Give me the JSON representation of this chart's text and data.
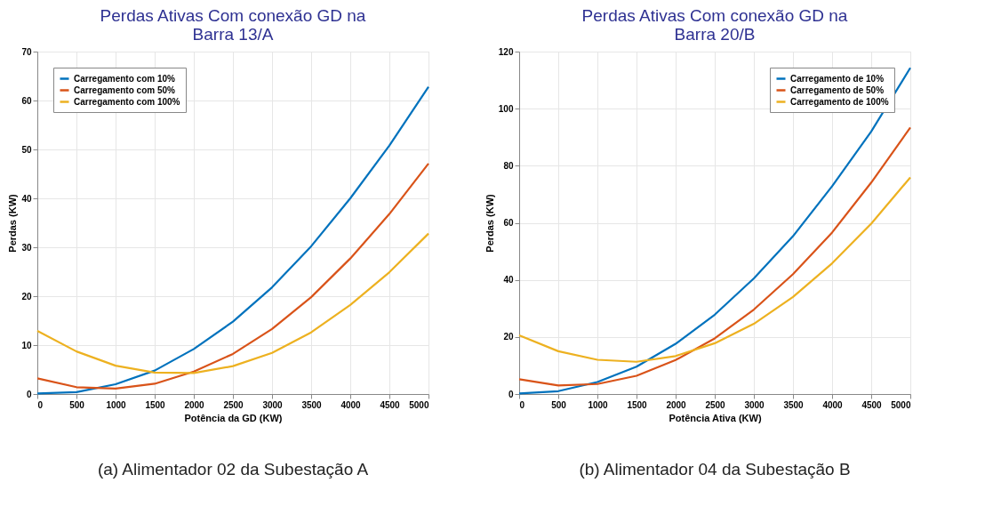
{
  "chart_data": [
    {
      "type": "line",
      "title": "Perdas Ativas Com conexão GD na Barra 13/A",
      "xlabel": "Potência da GD (KW)",
      "ylabel": "Perdas (KW)",
      "x": [
        0,
        500,
        1000,
        1500,
        2000,
        2500,
        3000,
        3500,
        4000,
        4500,
        5000
      ],
      "series": [
        {
          "name": "Carregamento com 10%",
          "color": "#0072bd",
          "values": [
            0.1,
            0.4,
            2,
            4.8,
            9.2,
            14.8,
            21.8,
            30.2,
            40,
            50.8,
            62.8
          ]
        },
        {
          "name": "Carregamento com 50%",
          "color": "#d95319",
          "values": [
            3.2,
            1.4,
            1.1,
            2.1,
            4.6,
            8.2,
            13.3,
            19.8,
            27.7,
            36.8,
            47.1
          ]
        },
        {
          "name": "Carregamento com 100%",
          "color": "#edb120",
          "values": [
            12.9,
            8.7,
            5.8,
            4.4,
            4.3,
            5.7,
            8.4,
            12.6,
            18.2,
            24.9,
            32.8
          ]
        }
      ],
      "xlim": [
        0,
        5000
      ],
      "xticks": [
        0,
        500,
        1000,
        1500,
        2000,
        2500,
        3000,
        3500,
        4000,
        4500,
        5000
      ],
      "ylim": [
        0,
        70
      ],
      "yticks": [
        0,
        10,
        20,
        30,
        40,
        50,
        60,
        70
      ],
      "grid": true,
      "legend": "top left",
      "marker": "none",
      "line_style": "solid",
      "annotations": [
        "(a) Alimentador 02 da Subestação A"
      ]
    },
    {
      "type": "line",
      "title": "Perdas Ativas Com conexão GD na Barra 20/B",
      "xlabel": "Potência Ativa (KW)",
      "ylabel": "Perdas (KW)",
      "x": [
        0,
        500,
        1000,
        1500,
        2000,
        2500,
        3000,
        3500,
        4000,
        4500,
        5000
      ],
      "series": [
        {
          "name": "Carregamento de 10%",
          "color": "#0072bd",
          "values": [
            0.2,
            1,
            4.2,
            9.6,
            17.6,
            27.8,
            40.5,
            55.3,
            72.8,
            92,
            114.3
          ]
        },
        {
          "name": "Carregamento de 50%",
          "color": "#d95319",
          "values": [
            5.2,
            3,
            3.5,
            6.4,
            11.9,
            19.5,
            29.6,
            42,
            56.6,
            74.1,
            93.4
          ]
        },
        {
          "name": "Carregamento de 100%",
          "color": "#edb120",
          "values": [
            20.6,
            15,
            12,
            11.3,
            13.3,
            17.8,
            24.6,
            34,
            45.8,
            59.7,
            75.9
          ]
        }
      ],
      "xlim": [
        0,
        5000
      ],
      "xticks": [
        0,
        500,
        1000,
        1500,
        2000,
        2500,
        3000,
        3500,
        4000,
        4500,
        5000
      ],
      "ylim": [
        0,
        120
      ],
      "yticks": [
        0,
        20,
        40,
        60,
        80,
        100,
        120
      ],
      "grid": true,
      "legend": "top right",
      "marker": "none",
      "line_style": "solid",
      "annotations": [
        "(b) Alimentador 04 da Subestação B"
      ]
    }
  ]
}
